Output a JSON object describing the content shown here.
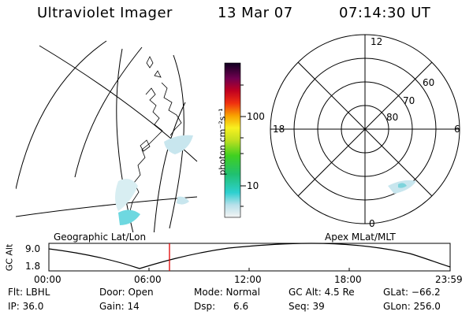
{
  "header": {
    "instrument": "Ultraviolet Imager",
    "date": "13 Mar 07",
    "time": "07:14:30 UT"
  },
  "colorbar": {
    "unit_label": "photon cm⁻²s⁻¹",
    "ticks": [
      "100",
      "10"
    ]
  },
  "geo_panel": {
    "label": "Geographic Lat/Lon"
  },
  "polar_panel": {
    "label": "Apex MLat/MLT",
    "mlt_labels": {
      "top": "12",
      "bottom": "0",
      "left": "18",
      "right": "6"
    },
    "lat_labels": [
      "60",
      "70",
      "80"
    ]
  },
  "timeline": {
    "ylabel": "GC Alt",
    "y_ticks": [
      "9.0",
      "1.8"
    ],
    "x_ticks": [
      "00:00",
      "06:00",
      "12:00",
      "18:00",
      "23:59"
    ],
    "marker_time_hours": 7.24
  },
  "status": {
    "filter": "Flt: LBHL",
    "ip": "IP: 36.0",
    "door": "Door: Open",
    "gain": "Gain: 14",
    "mode": "Mode: Normal",
    "dsp": "Dsp:      6.6",
    "gc_alt": "GC Alt: 4.5 Re",
    "seq": "Seq: 39",
    "glat": "GLat: −66.2",
    "glon": "GLon: 256.0"
  }
}
